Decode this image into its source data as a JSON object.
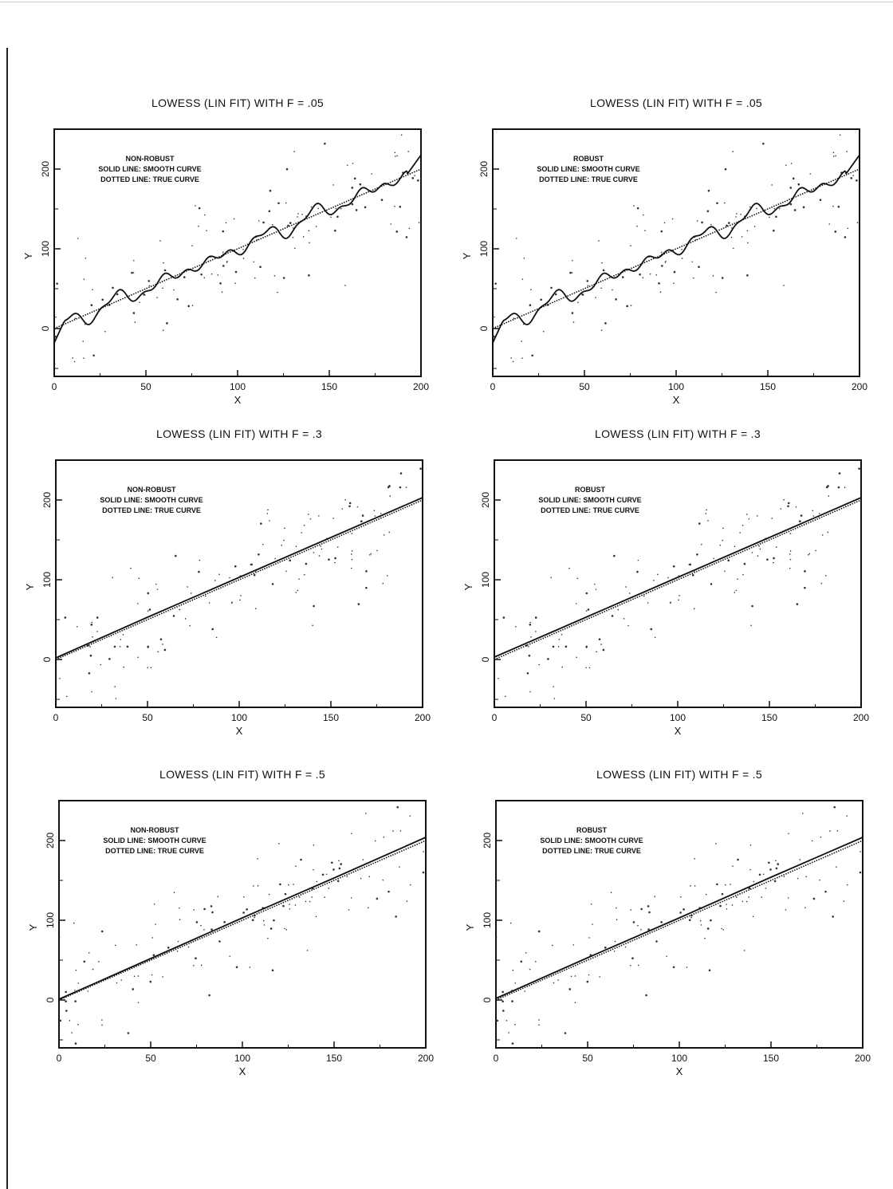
{
  "chart_data": [
    {
      "type": "line",
      "title": "LOWESS (LIN FIT) WITH F = .05",
      "annotation": [
        "NON-ROBUST",
        "SOLID LINE: SMOOTH CURVE",
        "DOTTED LINE: TRUE CURVE"
      ],
      "xlabel": "X",
      "ylabel": "Y",
      "xlim": [
        0,
        200
      ],
      "ylim": [
        -60,
        250
      ],
      "xticks": [
        "0",
        "50",
        "100",
        "150",
        "200"
      ],
      "yticks": [
        "0",
        "100",
        "200"
      ],
      "smooth_wiggle": 1,
      "series": [
        {
          "name": "SMOOTH CURVE",
          "x": [
            0,
            50,
            100,
            150,
            200
          ],
          "y": [
            0,
            50,
            100,
            150,
            200
          ]
        },
        {
          "name": "TRUE CURVE",
          "x": [
            0,
            200
          ],
          "y": [
            0,
            200
          ]
        }
      ]
    },
    {
      "type": "line",
      "title": "LOWESS (LIN FIT) WITH F = .05",
      "annotation": [
        "ROBUST",
        "SOLID LINE: SMOOTH CURVE",
        "DOTTED LINE: TRUE CURVE"
      ],
      "xlabel": "X",
      "ylabel": "Y",
      "xlim": [
        0,
        200
      ],
      "ylim": [
        -60,
        250
      ],
      "xticks": [
        "0",
        "50",
        "100",
        "150",
        "200"
      ],
      "yticks": [
        "0",
        "100",
        "200"
      ],
      "smooth_wiggle": 1,
      "series": [
        {
          "name": "SMOOTH CURVE",
          "x": [
            0,
            50,
            100,
            150,
            200
          ],
          "y": [
            0,
            50,
            100,
            150,
            200
          ]
        },
        {
          "name": "TRUE CURVE",
          "x": [
            0,
            200
          ],
          "y": [
            0,
            200
          ]
        }
      ]
    },
    {
      "type": "line",
      "title": "LOWESS (LIN FIT) WITH F = .3",
      "annotation": [
        "NON-ROBUST",
        "SOLID LINE: SMOOTH CURVE",
        "DOTTED LINE: TRUE CURVE"
      ],
      "xlabel": "X",
      "ylabel": "Y",
      "xlim": [
        0,
        200
      ],
      "ylim": [
        -60,
        250
      ],
      "xticks": [
        "0",
        "50",
        "100",
        "150",
        "200"
      ],
      "yticks": [
        "0",
        "100",
        "200"
      ],
      "smooth_wiggle": 0,
      "series": [
        {
          "name": "SMOOTH CURVE",
          "x": [
            0,
            50,
            100,
            150,
            200
          ],
          "y": [
            2,
            53,
            103,
            153,
            203
          ]
        },
        {
          "name": "TRUE CURVE",
          "x": [
            0,
            200
          ],
          "y": [
            0,
            200
          ]
        }
      ]
    },
    {
      "type": "line",
      "title": "LOWESS (LIN FIT) WITH F = .3",
      "annotation": [
        "ROBUST",
        "SOLID LINE: SMOOTH CURVE",
        "DOTTED LINE: TRUE CURVE"
      ],
      "xlabel": "X",
      "ylabel": "Y",
      "xlim": [
        0,
        200
      ],
      "ylim": [
        -60,
        250
      ],
      "xticks": [
        "0",
        "50",
        "100",
        "150",
        "200"
      ],
      "yticks": [
        "0",
        "100",
        "200"
      ],
      "smooth_wiggle": 0,
      "series": [
        {
          "name": "SMOOTH CURVE",
          "x": [
            0,
            50,
            100,
            150,
            200
          ],
          "y": [
            3,
            53,
            103,
            153,
            203
          ]
        },
        {
          "name": "TRUE CURVE",
          "x": [
            0,
            200
          ],
          "y": [
            0,
            200
          ]
        }
      ]
    },
    {
      "type": "line",
      "title": "LOWESS (LIN FIT) WITH F = .5",
      "annotation": [
        "NON-ROBUST",
        "SOLID LINE: SMOOTH CURVE",
        "DOTTED LINE: TRUE CURVE"
      ],
      "xlabel": "X",
      "ylabel": "Y",
      "xlim": [
        0,
        200
      ],
      "ylim": [
        -60,
        250
      ],
      "xticks": [
        "0",
        "50",
        "100",
        "150",
        "200"
      ],
      "yticks": [
        "0",
        "100",
        "200"
      ],
      "smooth_wiggle": 0,
      "series": [
        {
          "name": "SMOOTH CURVE",
          "x": [
            0,
            50,
            100,
            150,
            200
          ],
          "y": [
            1,
            52,
            103,
            153,
            204
          ]
        },
        {
          "name": "TRUE CURVE",
          "x": [
            0,
            200
          ],
          "y": [
            0,
            200
          ]
        }
      ]
    },
    {
      "type": "line",
      "title": "LOWESS (LIN FIT) WITH F = .5",
      "annotation": [
        "ROBUST",
        "SOLID LINE: SMOOTH CURVE",
        "DOTTED LINE: TRUE CURVE"
      ],
      "xlabel": "X",
      "ylabel": "Y",
      "xlim": [
        0,
        200
      ],
      "ylim": [
        -60,
        250
      ],
      "xticks": [
        "0",
        "50",
        "100",
        "150",
        "200"
      ],
      "yticks": [
        "0",
        "100",
        "200"
      ],
      "smooth_wiggle": 0,
      "series": [
        {
          "name": "SMOOTH CURVE",
          "x": [
            0,
            50,
            100,
            150,
            200
          ],
          "y": [
            2,
            53,
            103,
            154,
            204
          ]
        },
        {
          "name": "TRUE CURVE",
          "x": [
            0,
            200
          ],
          "y": [
            0,
            200
          ]
        }
      ]
    }
  ]
}
